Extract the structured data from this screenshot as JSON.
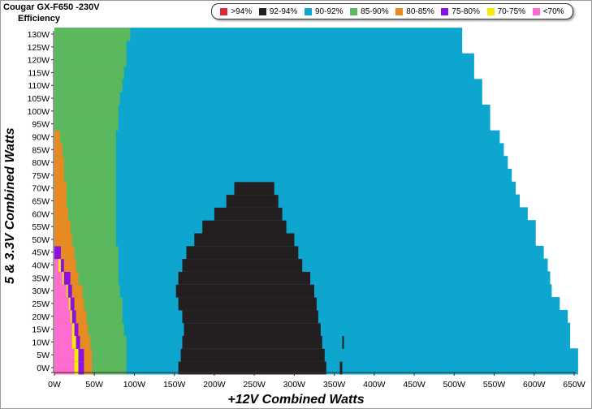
{
  "chart_data": {
    "type": "heatmap",
    "title": "Cougar GX-F650 -230V",
    "subtitle": "Efficiency",
    "xlabel": "+12V Combined Watts",
    "ylabel": "5 & 3.3V Combined Watts",
    "xlim": [
      0,
      650
    ],
    "ylim": [
      0,
      130
    ],
    "x_ticks": [
      "0W",
      "50W",
      "100W",
      "150W",
      "200W",
      "250W",
      "300W",
      "350W",
      "400W",
      "450W",
      "500W",
      "550W",
      "600W",
      "650W"
    ],
    "y_ticks": [
      "0W",
      "5W",
      "10W",
      "15W",
      "20W",
      "25W",
      "30W",
      "35W",
      "40W",
      "45W",
      "50W",
      "55W",
      "60W",
      "65W",
      "70W",
      "75W",
      "80W",
      "85W",
      "90W",
      "95W",
      "100W",
      "105W",
      "110W",
      "115W",
      "120W",
      "125W",
      "130W"
    ],
    "legend_placement": "top-right",
    "bins": [
      {
        "label": ">94%",
        "color": "#dc2a34"
      },
      {
        "label": "92-94%",
        "color": "#231f20"
      },
      {
        "label": "90-92%",
        "color": "#0ea5cf"
      },
      {
        "label": "85-90%",
        "color": "#5cb85c"
      },
      {
        "label": "80-85%",
        "color": "#e88a21"
      },
      {
        "label": "75-80%",
        "color": "#8c0fe6"
      },
      {
        "label": "70-75%",
        "color": "#f5ec00"
      },
      {
        "label": "<70%",
        "color": "#ff6bcf"
      }
    ],
    "max_12v_by_row": [
      655,
      655,
      645,
      645,
      642,
      632,
      622,
      620,
      617,
      612,
      602,
      602,
      592,
      582,
      577,
      572,
      567,
      562,
      557,
      545,
      545,
      535,
      535,
      525,
      525,
      510,
      510
    ],
    "bands": {
      "pink_upper": [
        25,
        25,
        22,
        22,
        20,
        18,
        15,
        10,
        5,
        0,
        0,
        0,
        0,
        0,
        0,
        0,
        0,
        0,
        0,
        0,
        0,
        0,
        0,
        0,
        0,
        0,
        0
      ],
      "yellow_upper": [
        30,
        30,
        27,
        25,
        22,
        20,
        17,
        12,
        8,
        0,
        0,
        0,
        0,
        0,
        0,
        0,
        0,
        0,
        0,
        0,
        0,
        0,
        0,
        0,
        0,
        0,
        0
      ],
      "purple_upper": [
        37,
        37,
        32,
        30,
        27,
        25,
        22,
        20,
        12,
        8,
        0,
        0,
        0,
        0,
        0,
        0,
        0,
        0,
        0,
        0,
        0,
        0,
        0,
        0,
        0,
        0,
        0
      ],
      "orange_upper": [
        47,
        47,
        45,
        42,
        40,
        37,
        35,
        30,
        27,
        25,
        22,
        20,
        17,
        15,
        15,
        12,
        12,
        10,
        7,
        0,
        0,
        0,
        0,
        0,
        0,
        0,
        0
      ],
      "green_upper": [
        90,
        90,
        90,
        87,
        85,
        85,
        82,
        80,
        80,
        80,
        77,
        77,
        77,
        77,
        77,
        77,
        77,
        77,
        77,
        80,
        80,
        82,
        85,
        87,
        90,
        90,
        95
      ],
      "black_ranges": [
        [
          [
            155,
            340
          ],
          [
            357,
            360
          ]
        ],
        [
          [
            158,
            338
          ]
        ],
        [
          [
            160,
            335
          ],
          [
            360,
            362
          ]
        ],
        [
          [
            162,
            333
          ]
        ],
        [
          [
            160,
            330
          ]
        ],
        [
          [
            155,
            328
          ]
        ],
        [
          [
            152,
            325
          ]
        ],
        [
          [
            155,
            320
          ]
        ],
        [
          [
            160,
            310
          ]
        ],
        [
          [
            165,
            305
          ]
        ],
        [
          [
            175,
            300
          ]
        ],
        [
          [
            185,
            290
          ]
        ],
        [
          [
            200,
            285
          ]
        ],
        [
          [
            215,
            280
          ]
        ],
        [
          [
            225,
            275
          ]
        ]
      ]
    }
  }
}
